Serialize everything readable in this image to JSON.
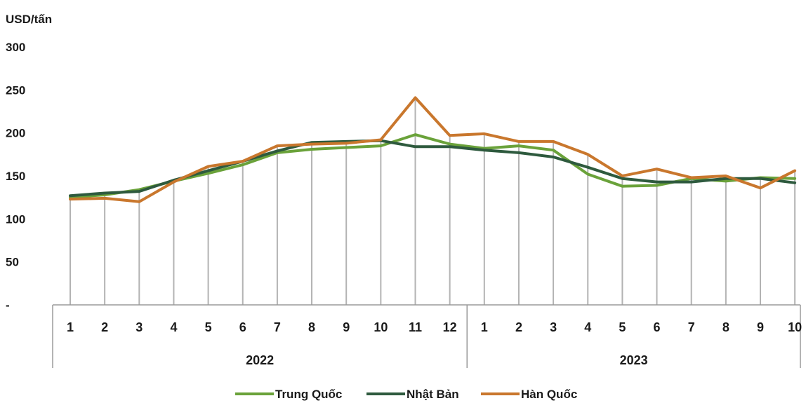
{
  "chart_data": {
    "type": "line",
    "ylabel": "USD/tấn",
    "ylim": [
      0,
      300
    ],
    "yticks": [
      {
        "value": 0,
        "label": "-"
      },
      {
        "value": 50,
        "label": "50"
      },
      {
        "value": 100,
        "label": "100"
      },
      {
        "value": 150,
        "label": "150"
      },
      {
        "value": 200,
        "label": "200"
      },
      {
        "value": 250,
        "label": "250"
      },
      {
        "value": 300,
        "label": "300"
      }
    ],
    "groups": [
      {
        "year": "2022",
        "months": [
          "1",
          "2",
          "3",
          "4",
          "5",
          "6",
          "7",
          "8",
          "9",
          "10",
          "11",
          "12"
        ]
      },
      {
        "year": "2023",
        "months": [
          "1",
          "2",
          "3",
          "4",
          "5",
          "6",
          "7",
          "8",
          "9",
          "10"
        ]
      }
    ],
    "grid": "vertical",
    "legend_position": "bottom",
    "series": [
      {
        "name": "Trung Quốc",
        "color": "#6aa23a",
        "values": [
          125,
          128,
          134,
          144,
          153,
          163,
          177,
          181,
          183,
          185,
          198,
          187,
          182,
          185,
          180,
          152,
          138,
          139,
          147,
          144,
          148,
          147
        ]
      },
      {
        "name": "Nhật Bản",
        "color": "#2e5a3e",
        "values": [
          127,
          130,
          132,
          145,
          156,
          167,
          179,
          189,
          190,
          191,
          184,
          184,
          180,
          177,
          172,
          160,
          147,
          143,
          143,
          147,
          147,
          142
        ]
      },
      {
        "name": "Hàn Quốc",
        "color": "#c9772d",
        "values": [
          123,
          124,
          120,
          143,
          161,
          167,
          185,
          187,
          188,
          192,
          241,
          197,
          199,
          190,
          190,
          175,
          150,
          158,
          148,
          150,
          136,
          156
        ]
      }
    ]
  }
}
